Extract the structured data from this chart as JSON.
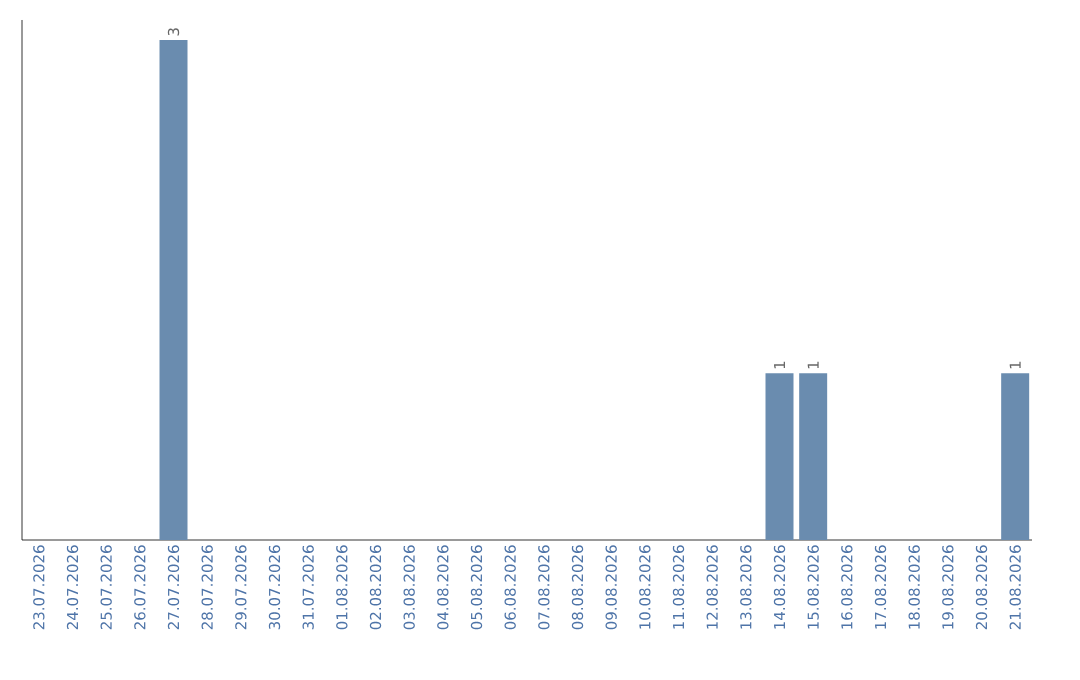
{
  "chart_data": {
    "type": "bar",
    "categories": [
      "23.07.2026",
      "24.07.2026",
      "25.07.2026",
      "26.07.2026",
      "27.07.2026",
      "28.07.2026",
      "29.07.2026",
      "30.07.2026",
      "31.07.2026",
      "01.08.2026",
      "02.08.2026",
      "03.08.2026",
      "04.08.2026",
      "05.08.2026",
      "06.08.2026",
      "07.08.2026",
      "08.08.2026",
      "09.08.2026",
      "10.08.2026",
      "11.08.2026",
      "12.08.2026",
      "13.08.2026",
      "14.08.2026",
      "15.08.2026",
      "16.08.2026",
      "17.08.2026",
      "18.08.2026",
      "19.08.2026",
      "20.08.2026",
      "21.08.2026"
    ],
    "values": [
      0,
      0,
      0,
      0,
      3,
      0,
      0,
      0,
      0,
      0,
      0,
      0,
      0,
      0,
      0,
      0,
      0,
      0,
      0,
      0,
      0,
      0,
      1,
      1,
      0,
      0,
      0,
      0,
      0,
      1
    ],
    "value_labels": [
      null,
      null,
      null,
      null,
      "3",
      null,
      null,
      null,
      null,
      null,
      null,
      null,
      null,
      null,
      null,
      null,
      null,
      null,
      null,
      null,
      null,
      null,
      "1",
      "1",
      null,
      null,
      null,
      null,
      null,
      "1"
    ],
    "color": "#6a8caf",
    "tick_labels": "x"
  }
}
